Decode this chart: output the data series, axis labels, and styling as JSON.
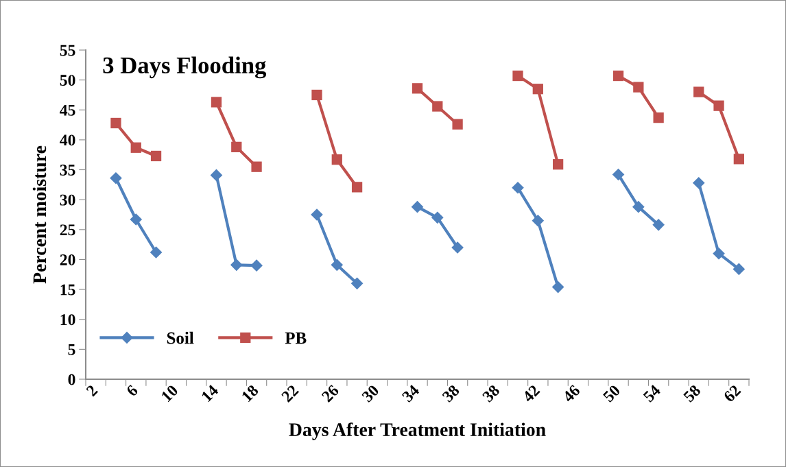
{
  "chart_data": {
    "type": "line",
    "title": "3 Days Flooding",
    "xlabel": "Days After Treatment Initiation",
    "ylabel": "Percent moisture",
    "categories": [
      "2",
      null,
      "6",
      null,
      "10",
      null,
      "14",
      null,
      "18",
      null,
      "22",
      null,
      "26",
      null,
      "30",
      null,
      "34",
      null,
      "38",
      null,
      "38",
      null,
      "42",
      null,
      "46",
      null,
      "50",
      null,
      "54",
      null,
      "58",
      null,
      "62"
    ],
    "series": [
      {
        "name": "Soil",
        "color": "#4f81bd",
        "marker": "diamond",
        "values": [
          null,
          33.6,
          26.7,
          21.2,
          null,
          null,
          34.1,
          19.1,
          19.0,
          null,
          null,
          27.5,
          19.1,
          16.0,
          null,
          null,
          28.8,
          27.0,
          22.0,
          null,
          null,
          32.0,
          26.5,
          15.4,
          null,
          null,
          34.2,
          28.8,
          25.8,
          null,
          32.8,
          21.0,
          18.4
        ]
      },
      {
        "name": "PB",
        "color": "#c0504d",
        "marker": "square",
        "values": [
          null,
          42.8,
          38.7,
          37.3,
          null,
          null,
          46.3,
          38.8,
          35.5,
          null,
          null,
          47.5,
          36.7,
          32.1,
          null,
          null,
          48.6,
          45.6,
          42.6,
          null,
          null,
          50.7,
          48.5,
          35.9,
          null,
          null,
          50.7,
          48.8,
          43.7,
          null,
          48.0,
          45.7,
          36.8
        ]
      }
    ],
    "ylim": [
      0,
      55
    ],
    "yticks": [
      0,
      5,
      10,
      15,
      20,
      25,
      30,
      35,
      40,
      45,
      50,
      55
    ],
    "grid": false,
    "legend": "bottom left",
    "line_style": "solid"
  }
}
